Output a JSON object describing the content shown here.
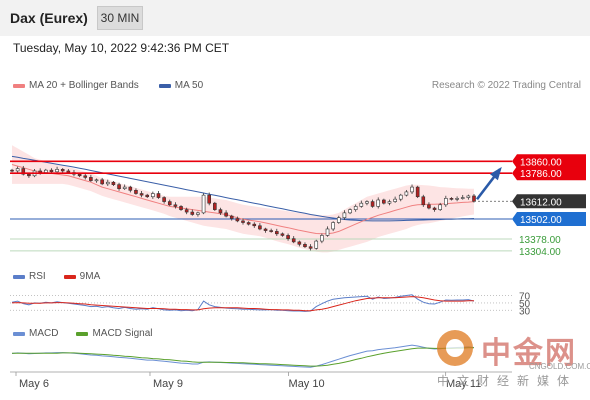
{
  "header": {
    "title": "Dax (Eurex)",
    "timeframe": "30 MIN"
  },
  "datetime": "Tuesday, May 10, 2022 9:42:36 PM CET",
  "copyright": "Research © 2022 Trading Central",
  "watermark": {
    "text": "中金网",
    "url": "CNGOLD.COM.CN",
    "sub": "中文财经新媒体"
  },
  "colors": {
    "resistance": "#e8000d",
    "support_line": "#2d5db3",
    "pivot_badge": "#1f6fd1",
    "current_badge": "#333333",
    "target_level": "#3b9c3b",
    "ma20": "#f08080",
    "bollinger_fill": "#fde4e4",
    "ma50": "#3a5fa8",
    "candle_up": "#2e7d32",
    "candle_down": "#b22222",
    "rsi": "#5b7ec9",
    "rsi_ma": "#d9261c",
    "macd": "#6b8fd4",
    "macd_signal": "#5aa02c",
    "arrow": "#2a5aa8"
  },
  "chart_data": [
    {
      "type": "candlestick",
      "title": "",
      "legend": [
        {
          "name": "MA 20 + Bollinger Bands",
          "color": "#f08080"
        },
        {
          "name": "MA 50",
          "color": "#3a5fa8"
        }
      ],
      "x_ticks": [
        "May 6",
        "May 9",
        "May 10",
        "May 11"
      ],
      "ylim": [
        13260,
        13930
      ],
      "levels": [
        {
          "value": 13860.0,
          "label": "13860.00",
          "style": "resistance"
        },
        {
          "value": 13786.0,
          "label": "13786.00",
          "style": "resistance"
        },
        {
          "value": 13612.0,
          "label": "13612.00",
          "style": "current"
        },
        {
          "value": 13502.0,
          "label": "13502.00",
          "style": "pivot"
        },
        {
          "value": 13378.0,
          "label": "13378.00",
          "style": "target"
        },
        {
          "value": 13304.0,
          "label": "13304.00",
          "style": "target"
        }
      ],
      "close": [
        13800,
        13815,
        13780,
        13770,
        13800,
        13790,
        13805,
        13795,
        13810,
        13800,
        13790,
        13780,
        13770,
        13760,
        13740,
        13745,
        13720,
        13730,
        13715,
        13690,
        13700,
        13680,
        13660,
        13650,
        13640,
        13660,
        13635,
        13610,
        13590,
        13580,
        13560,
        13545,
        13530,
        13540,
        13650,
        13600,
        13560,
        13540,
        13520,
        13505,
        13490,
        13480,
        13470,
        13460,
        13440,
        13430,
        13425,
        13410,
        13400,
        13380,
        13360,
        13345,
        13330,
        13320,
        13365,
        13400,
        13440,
        13480,
        13510,
        13540,
        13560,
        13580,
        13600,
        13610,
        13580,
        13620,
        13600,
        13610,
        13625,
        13650,
        13670,
        13700,
        13640,
        13590,
        13570,
        13560,
        13590,
        13630,
        13625,
        13630,
        13635,
        13645,
        13612
      ],
      "ma20": [
        13840,
        13830,
        13820,
        13810,
        13800,
        13795,
        13790,
        13785,
        13780,
        13775,
        13770,
        13760,
        13750,
        13740,
        13730,
        13715,
        13700,
        13690,
        13680,
        13670,
        13660,
        13650,
        13640,
        13630,
        13620,
        13610,
        13600,
        13590,
        13580,
        13575,
        13570,
        13565,
        13560,
        13555,
        13550,
        13545,
        13540,
        13535,
        13530,
        13520,
        13510,
        13500,
        13495,
        13490,
        13485,
        13478,
        13470,
        13462,
        13455,
        13448,
        13440,
        13432,
        13425,
        13418,
        13412,
        13410,
        13410,
        13415,
        13425,
        13440,
        13455,
        13470,
        13485,
        13500,
        13512,
        13525,
        13535,
        13545,
        13555,
        13565,
        13575,
        13585,
        13590,
        13592,
        13593,
        13594,
        13595,
        13597,
        13600,
        13602,
        13605,
        13607,
        13610
      ],
      "bb_upper": [
        13960,
        13940,
        13920,
        13900,
        13880,
        13870,
        13860,
        13850,
        13840,
        13830,
        13825,
        13815,
        13805,
        13795,
        13785,
        13770,
        13755,
        13745,
        13735,
        13725,
        13715,
        13705,
        13695,
        13685,
        13675,
        13665,
        13655,
        13645,
        13640,
        13640,
        13640,
        13640,
        13640,
        13640,
        13640,
        13635,
        13630,
        13625,
        13620,
        13610,
        13600,
        13590,
        13585,
        13580,
        13575,
        13570,
        13565,
        13560,
        13555,
        13550,
        13545,
        13540,
        13535,
        13530,
        13525,
        13525,
        13525,
        13530,
        13540,
        13560,
        13580,
        13600,
        13620,
        13640,
        13650,
        13660,
        13670,
        13680,
        13690,
        13700,
        13710,
        13715,
        13715,
        13712,
        13710,
        13705,
        13700,
        13698,
        13695,
        13693,
        13692,
        13690,
        13690
      ],
      "bb_lower": [
        13720,
        13720,
        13720,
        13720,
        13720,
        13720,
        13720,
        13720,
        13720,
        13720,
        13715,
        13705,
        13695,
        13685,
        13675,
        13660,
        13645,
        13635,
        13625,
        13615,
        13605,
        13595,
        13585,
        13575,
        13565,
        13555,
        13545,
        13535,
        13520,
        13510,
        13500,
        13490,
        13480,
        13470,
        13460,
        13455,
        13450,
        13445,
        13440,
        13430,
        13420,
        13410,
        13405,
        13400,
        13395,
        13386,
        13375,
        13364,
        13355,
        13346,
        13335,
        13324,
        13315,
        13306,
        13299,
        13295,
        13295,
        13300,
        13310,
        13320,
        13330,
        13340,
        13350,
        13360,
        13374,
        13390,
        13400,
        13410,
        13420,
        13430,
        13440,
        13455,
        13465,
        13472,
        13476,
        13483,
        13490,
        13496,
        13505,
        13511,
        13518,
        13524,
        13530
      ],
      "ma50": [
        13890,
        13885,
        13878,
        13872,
        13866,
        13860,
        13854,
        13848,
        13842,
        13836,
        13830,
        13824,
        13817,
        13810,
        13803,
        13796,
        13789,
        13782,
        13775,
        13768,
        13761,
        13754,
        13747,
        13740,
        13733,
        13726,
        13719,
        13712,
        13705,
        13698,
        13691,
        13684,
        13677,
        13670,
        13663,
        13656,
        13649,
        13642,
        13635,
        13628,
        13621,
        13614,
        13607,
        13600,
        13593,
        13586,
        13579,
        13572,
        13565,
        13558,
        13551,
        13544,
        13537,
        13530,
        13524,
        13518,
        13513,
        13508,
        13503,
        13499,
        13496,
        13494,
        13492,
        13491,
        13490,
        13490,
        13490,
        13490,
        13491,
        13492,
        13493,
        13494,
        13495,
        13496,
        13497,
        13498,
        13499,
        13500,
        13501,
        13502,
        13503,
        13504,
        13505
      ]
    },
    {
      "type": "line",
      "title": "",
      "legend": [
        {
          "name": "RSI",
          "color": "#5b7ec9"
        },
        {
          "name": "9MA",
          "color": "#d9261c"
        }
      ],
      "y_ticks": [
        "70",
        "50",
        "30"
      ],
      "ylim": [
        20,
        85
      ],
      "rsi": [
        52,
        55,
        48,
        45,
        50,
        49,
        52,
        50,
        53,
        51,
        49,
        47,
        45,
        43,
        40,
        41,
        38,
        40,
        37,
        35,
        38,
        35,
        33,
        34,
        33,
        37,
        34,
        31,
        30,
        31,
        29,
        30,
        29,
        32,
        55,
        45,
        40,
        38,
        36,
        35,
        34,
        33,
        33,
        32,
        31,
        31,
        32,
        30,
        30,
        29,
        28,
        28,
        27,
        28,
        40,
        48,
        55,
        60,
        62,
        64,
        65,
        66,
        67,
        68,
        60,
        66,
        62,
        63,
        65,
        68,
        70,
        72,
        60,
        52,
        48,
        47,
        52,
        58,
        57,
        58,
        58,
        59,
        55
      ],
      "rsi_ma": [
        50,
        51,
        50,
        49,
        49,
        49,
        50,
        50,
        51,
        51,
        50,
        49,
        48,
        47,
        45,
        44,
        43,
        42,
        41,
        40,
        39,
        38,
        37,
        36,
        35,
        35,
        35,
        34,
        33,
        33,
        32,
        32,
        31,
        31,
        34,
        36,
        37,
        37,
        37,
        37,
        37,
        36,
        35,
        35,
        34,
        33,
        32,
        32,
        31,
        31,
        30,
        30,
        29,
        29,
        31,
        33,
        36,
        40,
        44,
        48,
        52,
        56,
        59,
        62,
        63,
        64,
        64,
        64,
        64,
        65,
        66,
        67,
        66,
        64,
        61,
        58,
        56,
        55,
        55,
        55,
        55,
        56,
        56
      ]
    },
    {
      "type": "line",
      "title": "",
      "legend": [
        {
          "name": "MACD",
          "color": "#6b8fd4"
        },
        {
          "name": "MACD Signal",
          "color": "#5aa02c"
        }
      ],
      "ylim": [
        -60,
        40
      ],
      "macd": [
        -5,
        -3,
        -4,
        -6,
        -5,
        -4,
        -3,
        -3,
        -2,
        -2,
        -3,
        -4,
        -6,
        -8,
        -10,
        -11,
        -13,
        -14,
        -16,
        -18,
        -19,
        -21,
        -23,
        -25,
        -27,
        -27,
        -29,
        -31,
        -33,
        -35,
        -37,
        -38,
        -40,
        -40,
        -34,
        -33,
        -34,
        -35,
        -36,
        -37,
        -38,
        -39,
        -40,
        -41,
        -42,
        -43,
        -44,
        -45,
        -46,
        -47,
        -48,
        -49,
        -50,
        -51,
        -47,
        -42,
        -36,
        -30,
        -24,
        -18,
        -12,
        -7,
        -2,
        3,
        4,
        8,
        10,
        12,
        14,
        17,
        20,
        23,
        20,
        16,
        12,
        10,
        11,
        13,
        14,
        15,
        16,
        17,
        15
      ],
      "macd_signal": [
        -4,
        -4,
        -4,
        -4,
        -4,
        -4,
        -4,
        -4,
        -4,
        -3,
        -3,
        -3,
        -4,
        -5,
        -6,
        -7,
        -8,
        -9,
        -11,
        -12,
        -14,
        -15,
        -17,
        -19,
        -20,
        -22,
        -23,
        -25,
        -26,
        -28,
        -30,
        -31,
        -33,
        -34,
        -34,
        -34,
        -34,
        -34,
        -35,
        -35,
        -36,
        -36,
        -37,
        -38,
        -39,
        -39,
        -40,
        -41,
        -42,
        -43,
        -44,
        -45,
        -46,
        -47,
        -47,
        -46,
        -44,
        -41,
        -38,
        -34,
        -30,
        -25,
        -21,
        -16,
        -12,
        -8,
        -4,
        -1,
        2,
        5,
        8,
        11,
        13,
        13,
        13,
        12,
        12,
        12,
        12,
        13,
        13,
        14,
        14
      ]
    }
  ]
}
